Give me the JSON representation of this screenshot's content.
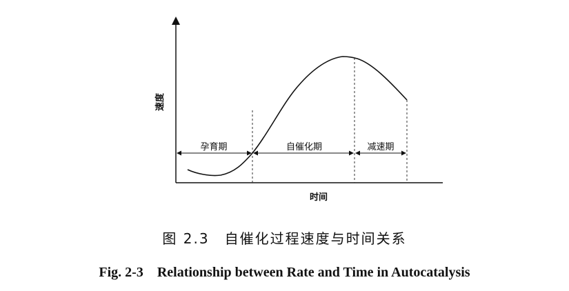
{
  "diagram": {
    "y_axis_label": "速度",
    "x_axis_label": "时间",
    "phases": [
      {
        "label": "孕育期"
      },
      {
        "label": "自催化期"
      },
      {
        "label": "减速期"
      }
    ]
  },
  "caption": {
    "chinese": "图 2.3　自催化过程速度与时间关系",
    "english": "Fig. 2-3　Relationship between Rate and Time in Autocatalysis"
  }
}
